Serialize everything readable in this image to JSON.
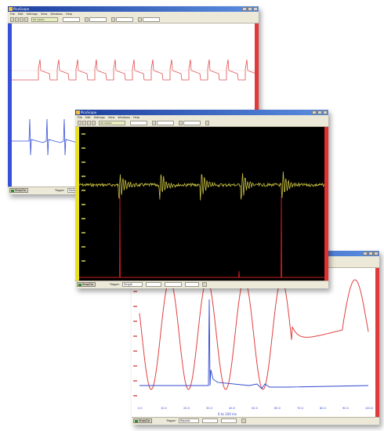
{
  "colors": {
    "channel_a": "#e03a3a",
    "channel_b": "#3850d8",
    "scope_trace": "#c8c040",
    "scope_spike": "#c82020",
    "scope_background": "#000000",
    "title_bar": "#1d3f9e"
  },
  "windows": [
    {
      "id": "top",
      "title": "PicoScope",
      "menu": [
        "File",
        "Edit",
        "Settings",
        "View",
        "Windows",
        "Help"
      ],
      "go_label": "Stop/Go",
      "trigger_label": "Trigger",
      "trigger_value": "None",
      "toolbar_value": "50 ms/div"
    },
    {
      "id": "middle",
      "title": "PicoScope",
      "menu": [
        "File",
        "Edit",
        "Settings",
        "View",
        "Windows",
        "Help"
      ],
      "go_label": "Stop/Go",
      "trigger_label": "Trigger",
      "trigger_value": "Single",
      "toolbar_value": "20 ms/div"
    },
    {
      "id": "bottom",
      "title": "PicoScope",
      "menu": [
        "File",
        "Edit",
        "Settings",
        "View",
        "Windows",
        "Help"
      ],
      "go_label": "Stop/Go",
      "trigger_label": "Trigger",
      "trigger_value": "Repeat",
      "toolbar_value": "10 ms/div",
      "x_axis_label": "0 to 100 ms",
      "x_ticks": [
        "0.0",
        "10.0",
        "20.0",
        "30.0",
        "40.0",
        "50.0",
        "60.0",
        "70.0",
        "80.0",
        "90.0",
        "100.0"
      ]
    }
  ]
}
